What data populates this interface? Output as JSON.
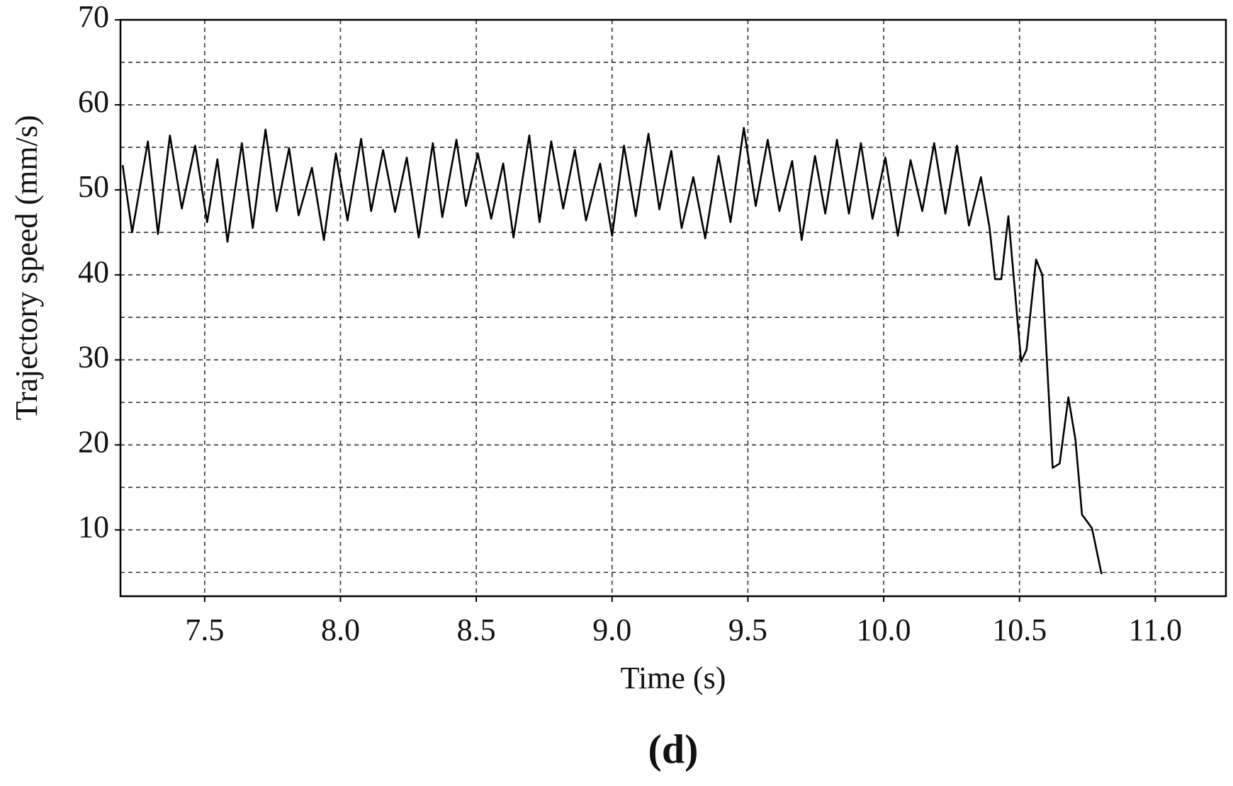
{
  "chart_data": {
    "type": "line",
    "title": "(d)",
    "x_label": "Time (s)",
    "y_label": "Trajectory speed (mm/s)",
    "xlim": [
      7.19,
      11.26
    ],
    "ylim": [
      2.2,
      70
    ],
    "xticks": [
      7.5,
      {
        "value": 8,
        "label": "8.0"
      },
      8.5,
      {
        "value": 9,
        "label": "9.0"
      },
      9.5,
      {
        "value": 10,
        "label": "10.0"
      },
      10.5,
      {
        "value": 11,
        "label": "11.0"
      }
    ],
    "yticks": [
      10,
      20,
      30,
      40,
      50,
      60,
      70
    ],
    "ygrid": [
      5,
      10,
      15,
      20,
      25,
      30,
      35,
      40,
      45,
      50,
      55,
      60,
      65
    ],
    "grid": true,
    "x": [
      7.198,
      7.233,
      7.291,
      7.328,
      7.372,
      7.416,
      7.465,
      7.509,
      7.547,
      7.584,
      7.637,
      7.677,
      7.724,
      7.765,
      7.811,
      7.846,
      7.895,
      7.939,
      7.983,
      8.026,
      8.076,
      8.113,
      8.157,
      8.201,
      8.244,
      8.288,
      8.34,
      8.375,
      8.427,
      8.462,
      8.506,
      8.555,
      8.599,
      8.637,
      8.695,
      8.733,
      8.776,
      8.82,
      8.863,
      8.904,
      8.956,
      9.0,
      9.044,
      9.087,
      9.134,
      9.174,
      9.218,
      9.256,
      9.299,
      9.343,
      9.392,
      9.436,
      9.485,
      9.529,
      9.573,
      9.616,
      9.663,
      9.698,
      9.747,
      9.785,
      9.828,
      9.872,
      9.916,
      9.959,
      10.006,
      10.052,
      10.099,
      10.142,
      10.186,
      10.227,
      10.27,
      10.314,
      10.358,
      10.39,
      10.41,
      10.433,
      10.459,
      10.506,
      10.526,
      10.561,
      10.584,
      10.622,
      10.648,
      10.68,
      10.706,
      10.73,
      10.767,
      10.802
    ],
    "series": [
      {
        "color": "#000000",
        "values": [
          52.9,
          45.0,
          55.7,
          44.8,
          56.4,
          47.8,
          55.2,
          46.2,
          53.6,
          43.9,
          55.5,
          45.5,
          57.1,
          47.5,
          54.9,
          47.0,
          52.6,
          44.1,
          54.3,
          46.4,
          56.0,
          47.5,
          54.7,
          47.4,
          53.8,
          44.4,
          55.5,
          46.8,
          55.9,
          48.1,
          54.3,
          46.6,
          53.1,
          44.4,
          56.4,
          46.2,
          55.7,
          47.8,
          54.7,
          46.4,
          53.1,
          44.6,
          55.2,
          46.9,
          56.6,
          47.7,
          54.6,
          45.5,
          51.5,
          44.3,
          54.0,
          46.2,
          57.3,
          48.1,
          55.9,
          47.5,
          53.4,
          44.1,
          54.0,
          47.2,
          55.9,
          47.2,
          55.5,
          46.6,
          53.8,
          44.6,
          53.5,
          47.5,
          55.5,
          47.2,
          55.2,
          45.8,
          51.5,
          45.5,
          39.5,
          39.5,
          46.9,
          29.8,
          31.2,
          41.8,
          40.0,
          17.3,
          17.8,
          25.6,
          20.6,
          11.8,
          10.2,
          4.8
        ]
      }
    ]
  }
}
